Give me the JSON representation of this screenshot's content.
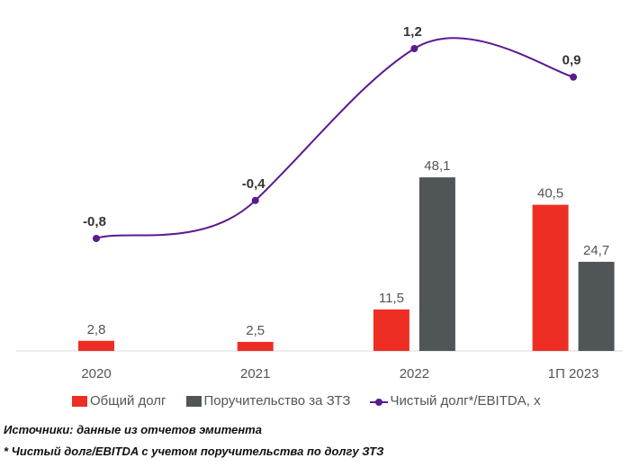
{
  "chart_data": {
    "type": "bar",
    "title": "",
    "xlabel": "",
    "ylabel": "",
    "categories": [
      "2020",
      "2021",
      "2022",
      "1П 2023"
    ],
    "series": [
      {
        "name": "Общий долг",
        "kind": "bar",
        "color": "#ee2e24",
        "values": [
          2.8,
          2.5,
          11.5,
          40.5
        ],
        "labels": [
          "2,8",
          "2,5",
          "11,5",
          "40,5"
        ]
      },
      {
        "name": "Поручительство за ЗТЗ",
        "kind": "bar",
        "color": "#505658",
        "values": [
          null,
          null,
          48.1,
          24.7
        ],
        "labels": [
          "",
          "",
          "48,1",
          "24,7"
        ]
      },
      {
        "name": "Чистый долг*/EBITDA, x",
        "kind": "line",
        "color": "#5b1a8e",
        "values": [
          -0.8,
          -0.4,
          1.2,
          0.9
        ],
        "labels": [
          "-0,8",
          "-0,4",
          "1,2",
          "0,9"
        ]
      }
    ],
    "bar_axis": {
      "ylim": [
        0,
        50
      ]
    },
    "line_axis": {
      "ylim": [
        -2.5,
        1.6
      ]
    },
    "grid": false,
    "legend_position": "bottom"
  },
  "legend": {
    "items": [
      "Общий долг",
      "Поручительство за ЗТЗ",
      "Чистый долг*/EBITDA, x"
    ]
  },
  "notes": {
    "source": "Источники: данные из отчетов эмитента",
    "footnote": "* Чистый долг/EBITDA с учетом поручительства по долгу ЗТЗ"
  }
}
